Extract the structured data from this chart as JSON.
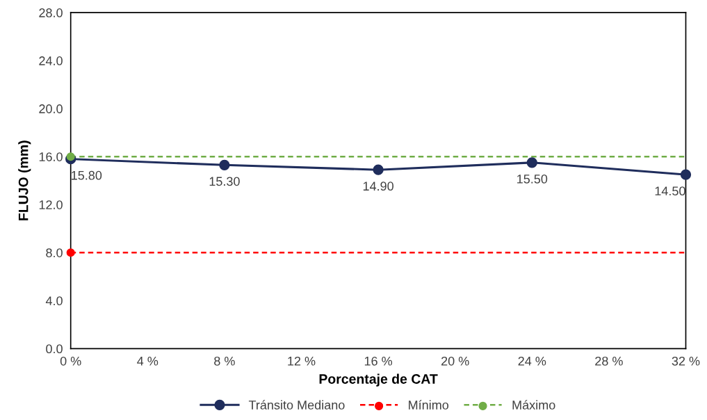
{
  "chart_data": {
    "type": "line",
    "xlabel": "Porcentaje de CAT",
    "ylabel": "FLUJO (mm)",
    "x": [
      0,
      8,
      16,
      24,
      32
    ],
    "series": [
      {
        "name": "Tránsito Mediano",
        "color": "#1f2d5c",
        "marker": "circle",
        "line_style": "solid",
        "values": [
          15.8,
          15.3,
          14.9,
          15.5,
          14.5
        ],
        "value_labels": [
          "15.80",
          "15.30",
          "14.90",
          "15.50",
          "14.50"
        ]
      },
      {
        "name": "Mínimo",
        "color": "#ff0000",
        "marker": "none",
        "line_style": "dashed",
        "values": [
          8,
          8,
          8,
          8,
          8
        ]
      },
      {
        "type": "scatter",
        "color": "#ff0000",
        "marker": "circle",
        "x": [
          0
        ],
        "values": [
          8
        ]
      },
      {
        "name": "Máximo",
        "color": "#70ad47",
        "marker": "none",
        "line_style": "dashed",
        "values": [
          16,
          16,
          16,
          16,
          16
        ]
      },
      {
        "type": "scatter",
        "color": "#70ad47",
        "marker": "circle",
        "x": [
          0
        ],
        "values": [
          16
        ]
      }
    ],
    "xlim": [
      0,
      32
    ],
    "xticks": [
      {
        "value": 0,
        "label": "0 %"
      },
      {
        "value": 4,
        "label": "4 %"
      },
      {
        "value": 8,
        "label": "8 %"
      },
      {
        "value": 12,
        "label": "12 %"
      },
      {
        "value": 16,
        "label": "16 %"
      },
      {
        "value": 20,
        "label": "20 %"
      },
      {
        "value": 24,
        "label": "24 %"
      },
      {
        "value": 28,
        "label": "28 %"
      },
      {
        "value": 32,
        "label": "32 %"
      }
    ],
    "ylim": [
      0,
      28
    ],
    "yticks": [
      {
        "value": 0,
        "label": "0.0"
      },
      {
        "value": 4,
        "label": "4.0"
      },
      {
        "value": 8,
        "label": "8.0"
      },
      {
        "value": 12,
        "label": "12.0"
      },
      {
        "value": 16,
        "label": "16.0"
      },
      {
        "value": 20,
        "label": "20.0"
      },
      {
        "value": 24,
        "label": "24.0"
      },
      {
        "value": 28,
        "label": "28.0"
      }
    ],
    "grid": false,
    "legend": "bottom"
  }
}
